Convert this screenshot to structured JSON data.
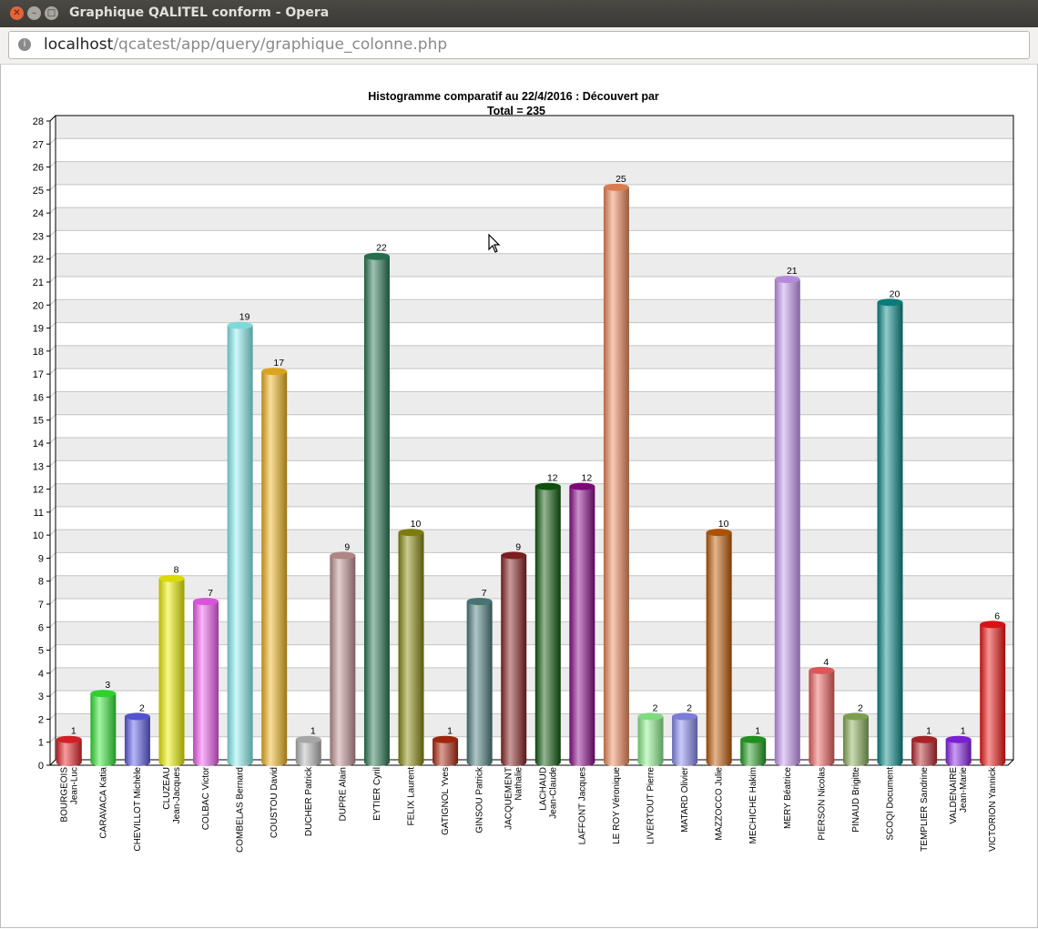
{
  "window": {
    "title": "Graphique QALITEL conform - Opera",
    "close_icon": "close-icon",
    "minimize_icon": "minimize-icon",
    "maximize_icon": "maximize-icon"
  },
  "browser": {
    "url_host": "localhost",
    "url_path": "/qcatest/app/query/graphique_colonne.php",
    "site_icon": "site-info-icon"
  },
  "chart_data": {
    "type": "bar",
    "title": "Histogramme comparatif au 22/4/2016 :  Découvert par",
    "subtitle": "Total = 235",
    "xlabel": "",
    "ylabel": "",
    "ylim": [
      0,
      28
    ],
    "yticks": [
      0,
      1,
      2,
      3,
      4,
      5,
      6,
      7,
      8,
      9,
      10,
      11,
      12,
      13,
      14,
      15,
      16,
      17,
      18,
      19,
      20,
      21,
      22,
      23,
      24,
      25,
      26,
      27,
      28
    ],
    "grid": true,
    "categories": [
      [
        "BOURGEOIS",
        "Jean-Luc"
      ],
      [
        "CARAVACA Katia"
      ],
      [
        "CHEVILLOT Michèle"
      ],
      [
        "CLUZEAU",
        "Jean-Jacques"
      ],
      [
        "COLBAC Victor"
      ],
      [
        "COMBELAS Bernard"
      ],
      [
        "COUSTOU David"
      ],
      [
        "DUCHER Patrick"
      ],
      [
        "DUPRE Alain"
      ],
      [
        "EYTIER Cyril"
      ],
      [
        "FELIX Laurent"
      ],
      [
        "GATIGNOL Yves"
      ],
      [
        "GINSOU Patrick"
      ],
      [
        "JACQUEMENT",
        "Nathalie"
      ],
      [
        "LACHAUD",
        "Jean-Claude"
      ],
      [
        "LAFFONT Jacques"
      ],
      [
        "LE ROY Véronique"
      ],
      [
        "LIVERTOUT Pierre"
      ],
      [
        "MATARD Olivier"
      ],
      [
        "MAZZOCCO Julie"
      ],
      [
        "MECHICHE Hakim"
      ],
      [
        "MERY Béatrice"
      ],
      [
        "PIERSON Nicolas"
      ],
      [
        "PINAUD Brigitte"
      ],
      [
        "SCOQI Document"
      ],
      [
        "TEMPLIER Sandrine"
      ],
      [
        "VALDENAIRE",
        "Jean-Marie"
      ],
      [
        "VICTORION Yannick"
      ]
    ],
    "values": [
      1,
      3,
      2,
      8,
      7,
      19,
      17,
      1,
      9,
      22,
      10,
      1,
      7,
      9,
      12,
      12,
      25,
      2,
      2,
      10,
      1,
      21,
      4,
      2,
      20,
      1,
      1,
      6
    ],
    "colors": [
      "#e8232a",
      "#33e833",
      "#5c5ce8",
      "#f2f200",
      "#f25cf2",
      "#8cf2f2",
      "#f2b620",
      "#b8b8b8",
      "#c49494",
      "#2a7a55",
      "#8a8a10",
      "#b02a10",
      "#4f8080",
      "#8a2222",
      "#0f5a0f",
      "#8a0a8a",
      "#f08a5a",
      "#8ef28e",
      "#8a8af2",
      "#c05a05",
      "#22a022",
      "#c89af2",
      "#f06262",
      "#8ab05a",
      "#0a8a8a",
      "#b8282e",
      "#8822e8",
      "#f01414"
    ]
  }
}
